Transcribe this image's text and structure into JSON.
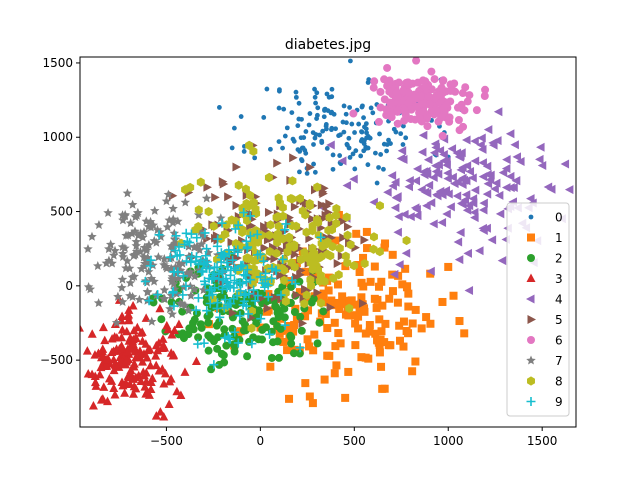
{
  "chart_data": {
    "type": "scatter",
    "title": "diabetes.jpg",
    "xlabel": "",
    "ylabel": "",
    "xlim": [
      -960,
      1680
    ],
    "ylim": [
      -950,
      1540
    ],
    "xticks": [
      -500,
      0,
      500,
      1000,
      1500
    ],
    "yticks": [
      -500,
      0,
      500,
      1000,
      1500
    ],
    "xtick_labels": [
      "−500",
      "0",
      "500",
      "1000",
      "1500"
    ],
    "ytick_labels": [
      "−500",
      "0",
      "500",
      "1000",
      "1500"
    ],
    "grid": false,
    "legend_position": "right",
    "series": [
      {
        "name": "0",
        "marker": "dot",
        "color": "#1f77b4",
        "center": [
          430,
          1050
        ],
        "spread": [
          230,
          170
        ],
        "count": 170,
        "seed": 11
      },
      {
        "name": "1",
        "marker": "square",
        "color": "#ff7f0e",
        "center": [
          430,
          -200
        ],
        "spread": [
          260,
          220
        ],
        "count": 180,
        "seed": 23
      },
      {
        "name": "2",
        "marker": "circle",
        "color": "#2ca02c",
        "center": [
          -120,
          -180
        ],
        "spread": [
          190,
          160
        ],
        "count": 170,
        "seed": 37
      },
      {
        "name": "3",
        "marker": "triangle-up",
        "color": "#d62728",
        "center": [
          -680,
          -500
        ],
        "spread": [
          130,
          150
        ],
        "count": 175,
        "seed": 41
      },
      {
        "name": "4",
        "marker": "triangle-left",
        "color": "#9467bd",
        "center": [
          1080,
          650
        ],
        "spread": [
          280,
          240
        ],
        "count": 180,
        "seed": 53
      },
      {
        "name": "5",
        "marker": "triangle-right",
        "color": "#8c564b",
        "center": [
          80,
          350
        ],
        "spread": [
          210,
          240
        ],
        "count": 175,
        "seed": 61
      },
      {
        "name": "6",
        "marker": "circle",
        "color": "#e377c2",
        "center": [
          880,
          1240
        ],
        "spread": [
          130,
          90
        ],
        "count": 175,
        "seed": 73
      },
      {
        "name": "7",
        "marker": "star",
        "color": "#7f7f7f",
        "center": [
          -560,
          220
        ],
        "spread": [
          170,
          190
        ],
        "count": 175,
        "seed": 79
      },
      {
        "name": "8",
        "marker": "hexagon",
        "color": "#bcbd22",
        "center": [
          150,
          280
        ],
        "spread": [
          230,
          220
        ],
        "count": 175,
        "seed": 89
      },
      {
        "name": "9",
        "marker": "plus",
        "color": "#17becf",
        "center": [
          -230,
          60
        ],
        "spread": [
          180,
          200
        ],
        "count": 180,
        "seed": 97
      }
    ]
  }
}
